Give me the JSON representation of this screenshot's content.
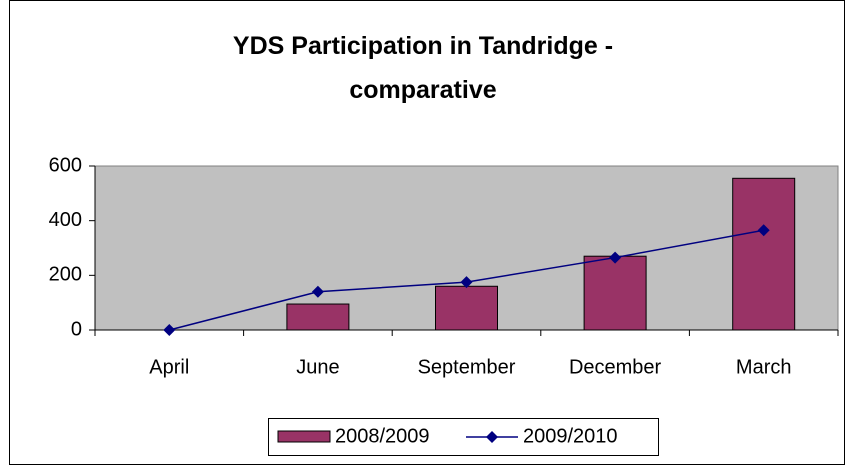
{
  "chart_data": {
    "type": "bar",
    "title": "YDS Participation in Tandridge - comparative",
    "categories": [
      "April",
      "June",
      "September",
      "December",
      "March"
    ],
    "series": [
      {
        "name": "2008/2009",
        "type": "bar",
        "color": "#993366",
        "values": [
          0,
          95,
          160,
          270,
          555
        ]
      },
      {
        "name": "2009/2010",
        "type": "line",
        "color": "#000080",
        "values": [
          0,
          140,
          175,
          265,
          365
        ]
      }
    ],
    "ylim": [
      0,
      600
    ],
    "yticks": [
      0,
      200,
      400,
      600
    ],
    "plot_background": "#c0c0c0",
    "legend": "bottom"
  }
}
